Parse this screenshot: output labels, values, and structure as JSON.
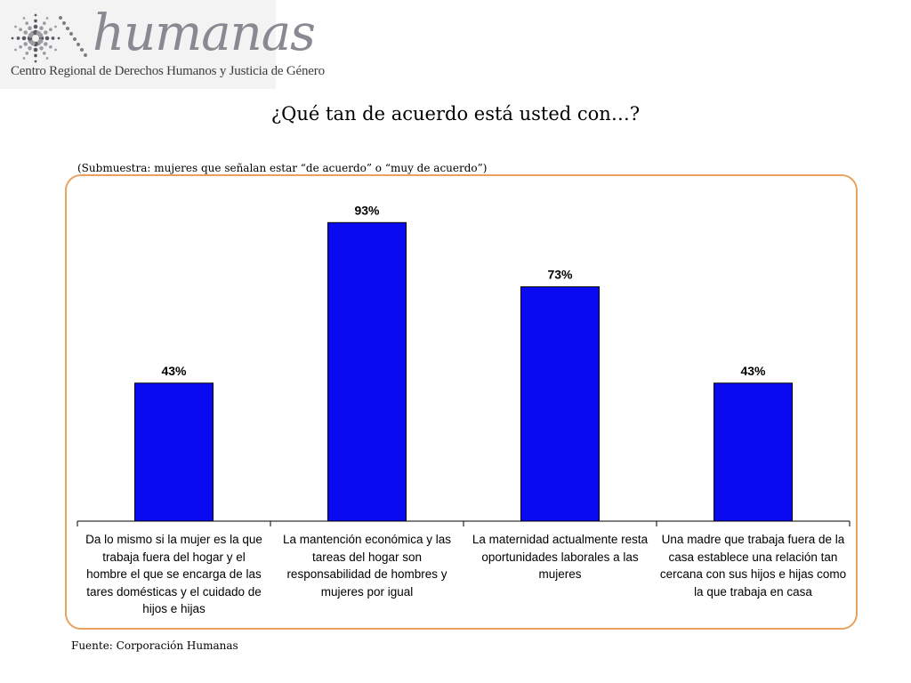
{
  "logo": {
    "word": "humanas",
    "subtitle": "Centro Regional de Derechos Humanos y Justicia de Género"
  },
  "title": "¿Qué tan de acuerdo está usted con…?",
  "subtitle": "(Submuestra: mujeres que señalan estar “de acuerdo” o “muy de acuerdo”)",
  "source": "Fuente: Corporación Humanas",
  "colors": {
    "bar": "#0a0af0",
    "frame": "#e8a15f",
    "logo_bg": "#f3f3f4"
  },
  "chart_data": {
    "type": "bar",
    "categories": [
      "Da lo mismo si la mujer es la que trabaja fuera del hogar y el hombre el que se encarga de las tares domésticas y el cuidado de hijos e hijas",
      "La mantención económica y las tareas del hogar son responsabilidad de hombres y mujeres por igual",
      "La maternidad actualmente resta oportunidades laborales a las mujeres",
      "Una madre que trabaja fuera de la casa establece una relación tan cercana con sus hijos e hijas como la que trabaja en casa"
    ],
    "values": [
      43,
      93,
      73,
      43
    ],
    "data_labels": [
      "43%",
      "93%",
      "73%",
      "43%"
    ],
    "ylim": [
      0,
      100
    ],
    "grid": false,
    "legend": "none"
  }
}
